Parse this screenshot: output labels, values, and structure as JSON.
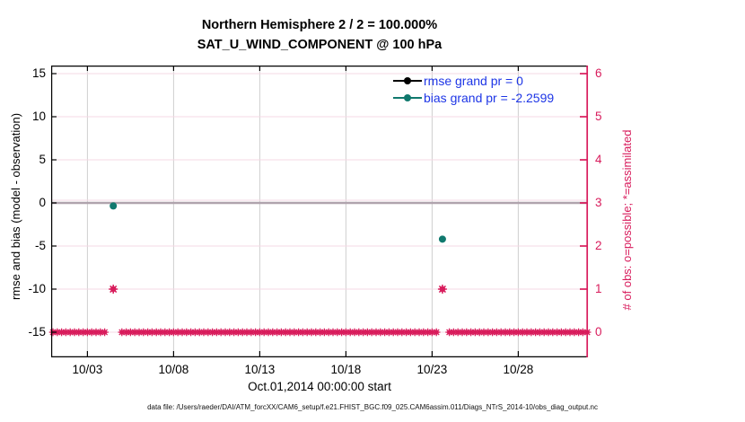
{
  "colors": {
    "crimson": "#d81c5c",
    "teal": "#10796e",
    "legend_blue": "#1d35e6",
    "grid_pink": "#f5d9e4",
    "grid_gray": "#cfcfcf",
    "zero_line": "#b0a3ad",
    "axis_black": "#000000"
  },
  "chart_data": {
    "type": "scatter",
    "title_line1": "Northern Hemisphere 2 / 2 = 100.000%",
    "title_line2": "SAT_U_WIND_COMPONENT @ 100 hPa",
    "xlabel": "Oct.01,2014 00:00:00 start",
    "ylabel_left": "rmse and bias (model - observation)",
    "ylabel_right": "# of obs: o=possible; *=assimilated",
    "caption": "data file: /Users/raeder/DAI/ATM_forcXX/CAM6_setup/f.e21.FHIST_BGC.f09_025.CAM6assim.011/Diags_NTrS_2014-10/obs_diag_output.nc",
    "x_axis": {
      "start_day": 0,
      "end_day": 31,
      "tick_days": [
        2,
        7,
        12,
        17,
        22,
        27
      ],
      "tick_labels": [
        "10/03",
        "10/08",
        "10/13",
        "10/18",
        "10/23",
        "10/28"
      ]
    },
    "y_left": {
      "ticks": [
        15,
        10,
        5,
        0,
        -5,
        -10,
        -15
      ],
      "range_note": "approx -17.9 to 15.9"
    },
    "y_right": {
      "ticks": [
        6,
        5,
        4,
        3,
        2,
        1,
        0
      ],
      "range_note": "approx -0.58 to 6.19"
    },
    "grid": true,
    "series": [
      {
        "name": "rmse",
        "grand_value": 0,
        "color": "#000000",
        "axis": "left",
        "points": []
      },
      {
        "name": "bias",
        "grand_value": -2.2599,
        "color": "#10796e",
        "axis": "left",
        "points": [
          {
            "day": 3.5,
            "value": -0.35
          },
          {
            "day": 22.6,
            "value": -4.2
          }
        ]
      },
      {
        "name": "obs_count",
        "color": "#d81c5c",
        "axis": "right",
        "count_points": [
          {
            "day": 3.5,
            "value": 1
          },
          {
            "day": 22.6,
            "value": 1
          }
        ],
        "zero_row": {
          "value": 0,
          "step_days": 0.25,
          "gaps": [
            [
              3.2,
              3.85
            ],
            [
              22.3,
              22.95
            ]
          ]
        }
      }
    ],
    "legend": {
      "text_color": "#1d35e6",
      "items": [
        {
          "label": "rmse grand pr = 0",
          "swatch_color": "#000000"
        },
        {
          "label": "bias grand pr = -2.2599",
          "swatch_color": "#10796e"
        }
      ]
    }
  }
}
